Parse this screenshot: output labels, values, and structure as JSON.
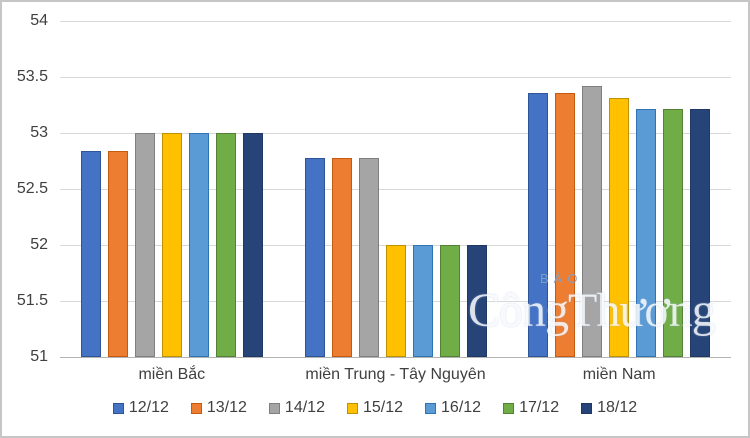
{
  "chart_data": {
    "type": "bar",
    "title": "",
    "xlabel": "",
    "ylabel": "",
    "categories": [
      "miền Bắc",
      "miền Trung - Tây Nguyên",
      "miền Nam"
    ],
    "series": [
      {
        "name": "12/12",
        "color": "#4472C4",
        "border": "#2F5597",
        "values": [
          52.84,
          52.78,
          53.36
        ]
      },
      {
        "name": "13/12",
        "color": "#ED7D31",
        "border": "#C55A11",
        "values": [
          52.84,
          52.78,
          53.36
        ]
      },
      {
        "name": "14/12",
        "color": "#A5A5A5",
        "border": "#7F7F7F",
        "values": [
          53.0,
          52.78,
          53.42
        ]
      },
      {
        "name": "15/12",
        "color": "#FFC000",
        "border": "#BF9000",
        "values": [
          53.0,
          52.0,
          53.31
        ]
      },
      {
        "name": "16/12",
        "color": "#5B9BD5",
        "border": "#2E75B6",
        "values": [
          53.0,
          52.0,
          53.21
        ]
      },
      {
        "name": "17/12",
        "color": "#70AD47",
        "border": "#538135",
        "values": [
          53.0,
          52.0,
          53.21
        ]
      },
      {
        "name": "18/12",
        "color": "#264478",
        "border": "#1F3864",
        "values": [
          53.0,
          52.0,
          53.21
        ]
      }
    ],
    "ylim": [
      51,
      54
    ],
    "yticks": [
      54,
      53.5,
      53,
      52.5,
      52,
      51.5,
      51
    ],
    "grid": true,
    "legend_position": "bottom"
  },
  "watermark": {
    "small": "BÁO",
    "big": "CôngThương"
  }
}
